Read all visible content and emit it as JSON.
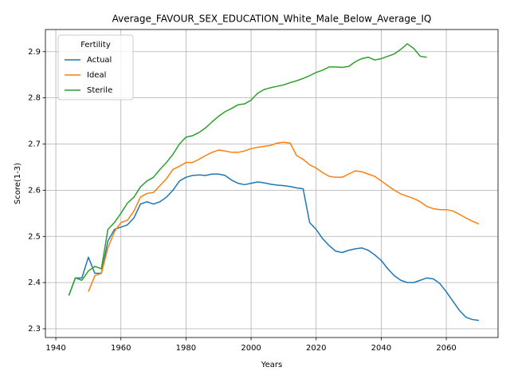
{
  "chart_data": {
    "type": "line",
    "title": "Average_FAVOUR_SEX_EDUCATION_White_Male_Below_Average_IQ",
    "xlabel": "Years",
    "ylabel": "Score(1-3)",
    "x": [
      1944,
      1946,
      1948,
      1950,
      1952,
      1954,
      1956,
      1958,
      1960,
      1962,
      1964,
      1966,
      1968,
      1970,
      1972,
      1974,
      1976,
      1978,
      1980,
      1982,
      1984,
      1986,
      1988,
      1990,
      1992,
      1994,
      1996,
      1998,
      2000,
      2002,
      2004,
      2006,
      2008,
      2010,
      2012,
      2014,
      2016,
      2018,
      2020,
      2022,
      2024,
      2026,
      2028,
      2030,
      2032,
      2034,
      2036,
      2038,
      2040,
      2042,
      2044,
      2046,
      2048,
      2050,
      2052,
      2054,
      2056,
      2058,
      2060,
      2062,
      2064,
      2066,
      2068,
      2070
    ],
    "series": [
      {
        "name": "Actual",
        "color": "#1f77b4",
        "values": [
          2.372,
          2.41,
          2.41,
          2.455,
          2.42,
          2.42,
          2.49,
          2.515,
          2.52,
          2.525,
          2.54,
          2.57,
          2.575,
          2.57,
          2.575,
          2.585,
          2.6,
          2.62,
          2.628,
          2.632,
          2.633,
          2.632,
          2.635,
          2.635,
          2.632,
          2.622,
          2.615,
          2.612,
          2.615,
          2.618,
          2.616,
          2.613,
          2.611,
          2.61,
          2.608,
          2.605,
          2.603,
          2.53,
          2.515,
          2.495,
          2.48,
          2.468,
          2.465,
          2.47,
          2.473,
          2.475,
          2.47,
          2.46,
          2.448,
          2.43,
          2.415,
          2.405,
          2.4,
          2.4,
          2.405,
          2.41,
          2.408,
          2.398,
          2.38,
          2.36,
          2.34,
          2.325,
          2.32,
          2.318
        ]
      },
      {
        "name": "Ideal",
        "color": "#ff7f0e",
        "values": [
          null,
          null,
          null,
          2.38,
          2.415,
          2.42,
          2.475,
          2.51,
          2.53,
          2.535,
          2.555,
          2.585,
          2.593,
          2.595,
          2.61,
          2.625,
          2.645,
          2.652,
          2.66,
          2.66,
          2.667,
          2.675,
          2.682,
          2.687,
          2.685,
          2.682,
          2.682,
          2.685,
          2.69,
          2.693,
          2.695,
          2.697,
          2.702,
          2.704,
          2.702,
          2.675,
          2.667,
          2.655,
          2.648,
          2.638,
          2.63,
          2.628,
          2.628,
          2.635,
          2.642,
          2.64,
          2.635,
          2.63,
          2.62,
          2.61,
          2.6,
          2.592,
          2.587,
          2.582,
          2.575,
          2.565,
          2.56,
          2.558,
          2.558,
          2.555,
          2.548,
          2.54,
          2.533,
          2.527
        ]
      },
      {
        "name": "Sterile",
        "color": "#2ca02c",
        "values": [
          2.372,
          2.41,
          2.405,
          2.425,
          2.435,
          2.43,
          2.515,
          2.53,
          2.55,
          2.572,
          2.585,
          2.607,
          2.62,
          2.628,
          2.645,
          2.66,
          2.678,
          2.7,
          2.715,
          2.718,
          2.725,
          2.735,
          2.748,
          2.76,
          2.77,
          2.777,
          2.785,
          2.787,
          2.795,
          2.81,
          2.818,
          2.822,
          2.825,
          2.828,
          2.833,
          2.837,
          2.842,
          2.848,
          2.855,
          2.86,
          2.867,
          2.867,
          2.866,
          2.868,
          2.878,
          2.885,
          2.888,
          2.882,
          2.885,
          2.89,
          2.895,
          2.905,
          2.917,
          2.907,
          2.89,
          2.888,
          null,
          null,
          null,
          null,
          null,
          null,
          null,
          null
        ]
      }
    ],
    "xlim": [
      1936.8,
      2075.9
    ],
    "ylim": [
      2.281,
      2.948
    ],
    "xticks": [
      1940,
      1960,
      1980,
      2000,
      2020,
      2040,
      2060
    ],
    "yticks": [
      2.3,
      2.4,
      2.5,
      2.6,
      2.7,
      2.8,
      2.9
    ],
    "grid": true,
    "legend_title": "Fertility",
    "legend_loc": "upper left"
  }
}
